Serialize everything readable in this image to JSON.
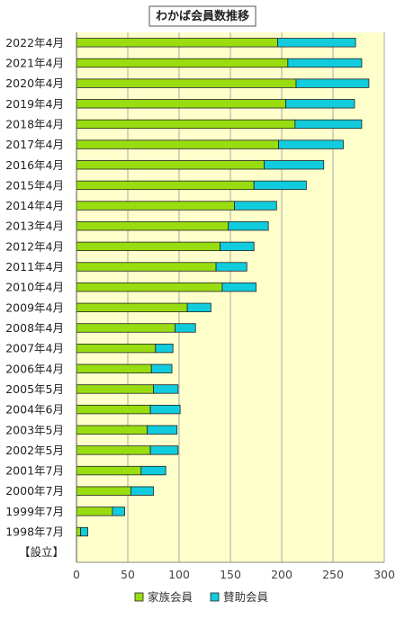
{
  "chart_data": {
    "type": "bar",
    "orientation": "horizontal",
    "stacked": true,
    "title": "わかば会員数推移",
    "categories": [
      "2022年4月",
      "2021年4月",
      "2020年4月",
      "2019年4月",
      "2018年4月",
      "2017年4月",
      "2016年4月",
      "2015年4月",
      "2014年4月",
      "2013年4月",
      "2012年4月",
      "2011年4月",
      "2010年4月",
      "2009年4月",
      "2008年4月",
      "2007年4月",
      "2006年4月",
      "2005年5月",
      "2004年6月",
      "2003年5月",
      "2002年5月",
      "2001年7月",
      "2000年7月",
      "1999年7月",
      "1998年7月",
      "【設立】"
    ],
    "series": [
      {
        "name": "家族会員",
        "color": "#99dd11",
        "values": [
          196,
          206,
          214,
          204,
          213,
          197,
          183,
          173,
          154,
          148,
          140,
          136,
          142,
          108,
          96,
          77,
          73,
          75,
          72,
          69,
          72,
          63,
          53,
          35,
          4,
          0
        ]
      },
      {
        "name": "賛助会員",
        "color": "#11ccdd",
        "values": [
          76,
          72,
          71,
          67,
          65,
          63,
          58,
          51,
          41,
          39,
          33,
          30,
          33,
          23,
          20,
          17,
          20,
          24,
          29,
          29,
          27,
          24,
          22,
          12,
          7,
          0
        ]
      }
    ],
    "xlim": [
      0,
      300
    ],
    "xticks": [
      0,
      50,
      100,
      150,
      200,
      250,
      300
    ],
    "grid": true,
    "legend_position": "bottom",
    "plot_background": "#ffffcc"
  }
}
